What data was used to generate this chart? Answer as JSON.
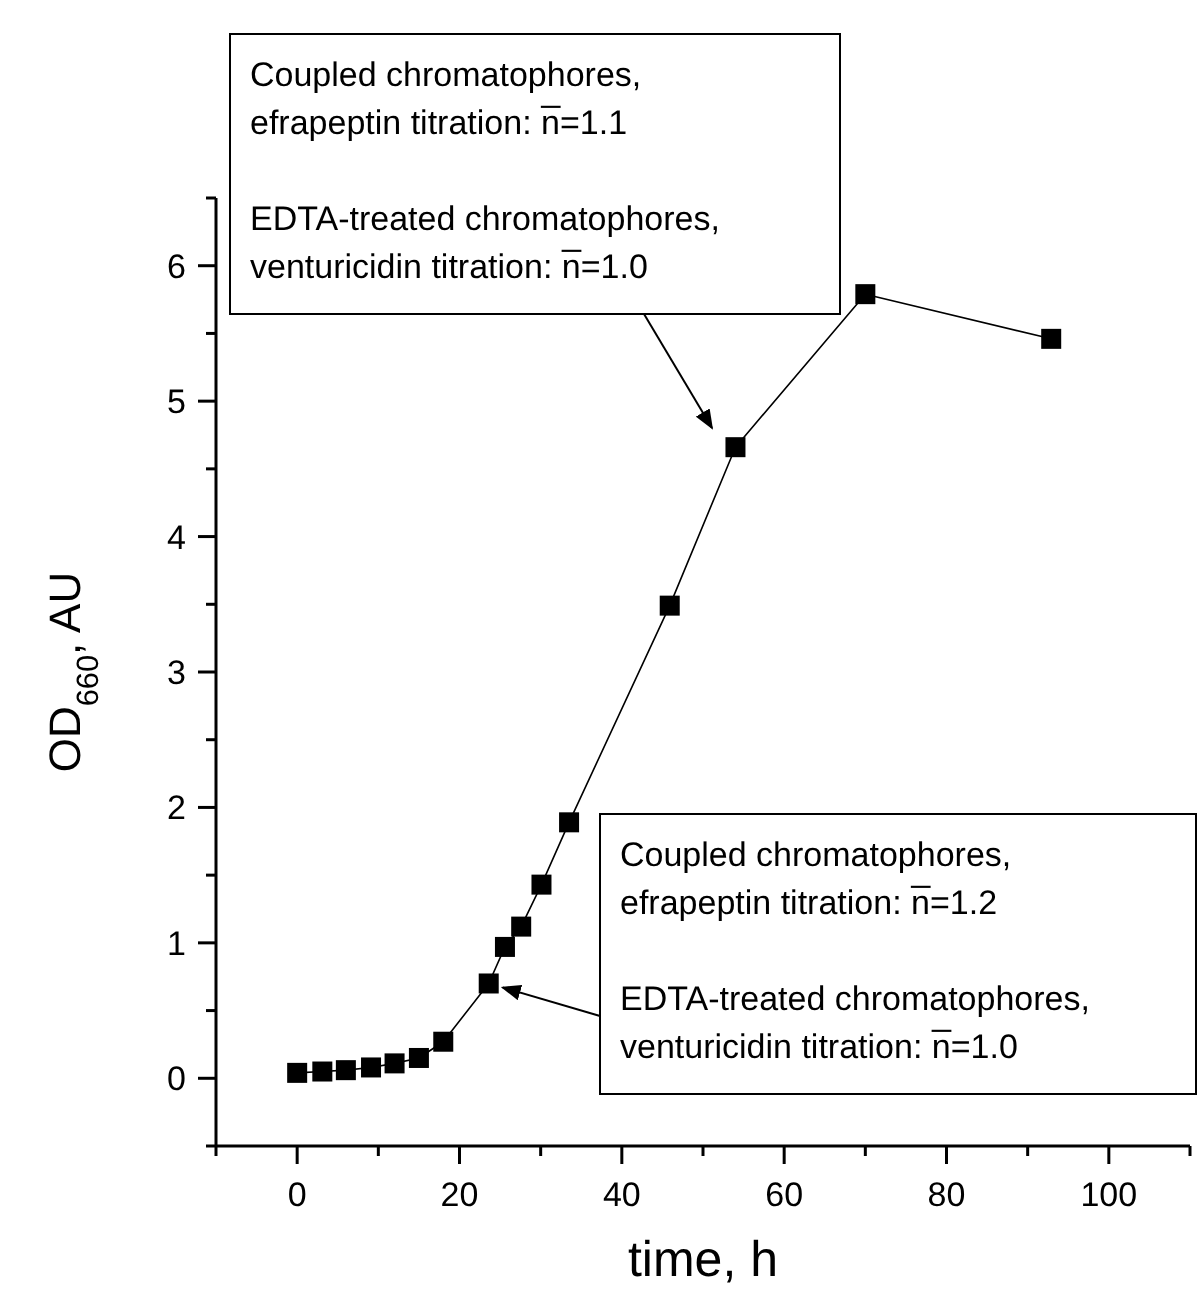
{
  "chart_data": {
    "type": "line",
    "xlabel": "time, h",
    "ylabel": "OD$_{660}$, AU",
    "x": [
      0,
      3.1,
      6.0,
      9.1,
      12.0,
      15.0,
      18.0,
      23.6,
      25.6,
      27.6,
      30.1,
      33.5,
      45.9,
      54.0,
      70.0,
      92.9
    ],
    "series": [
      {
        "color": "#000000",
        "values": [
          0.04,
          0.05,
          0.06,
          0.08,
          0.11,
          0.15,
          0.27,
          0.7,
          0.97,
          1.12,
          1.43,
          1.89,
          3.49,
          4.66,
          5.79,
          5.46
        ]
      }
    ],
    "marker": "square",
    "line_style": "solid",
    "xlim": [
      -10,
      110
    ],
    "ylim": [
      -0.5,
      6.5
    ],
    "xticks": [
      {
        "value": -10,
        "label": null
      },
      0,
      {
        "value": 10,
        "label": null
      },
      20,
      {
        "value": 30,
        "label": null
      },
      40,
      {
        "value": 50,
        "label": null
      },
      60,
      {
        "value": 70,
        "label": null
      },
      80,
      {
        "value": 90,
        "label": null
      },
      100,
      {
        "value": 110,
        "label": null
      }
    ],
    "yticks": [
      {
        "value": -0.5,
        "label": null
      },
      0,
      {
        "value": 0.5,
        "label": null
      },
      1,
      {
        "value": 1.5,
        "label": null
      },
      2,
      {
        "value": 2.5,
        "label": null
      },
      3,
      {
        "value": 3.5,
        "label": null
      },
      4,
      {
        "value": 4.5,
        "label": null
      },
      5,
      {
        "value": 5.5,
        "label": null
      },
      6,
      {
        "value": 6.5,
        "label": null
      }
    ],
    "annotations": [
      "Coupled chromatophores, efrapeptin titration: n̅=1.1",
      "EDTA-treated chromatophores, venturicidin titration: n̅=1.0",
      "Coupled chromatophores, efrapeptin titration: n̅=1.2",
      {
        "text": "EDTA-treated chromatophores, venturicidin titration: n̅=1.0",
        "x": 23.6,
        "y": 0.7
      }
    ]
  }
}
